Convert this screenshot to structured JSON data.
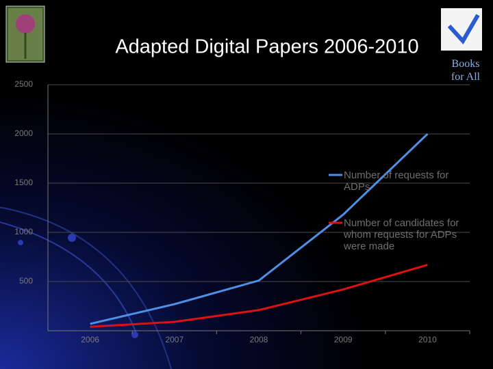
{
  "chart_data": {
    "type": "line",
    "title": "Adapted Digital Papers 2006-2010",
    "categories": [
      "2006",
      "2007",
      "2008",
      "2009",
      "2010"
    ],
    "series": [
      {
        "name": "Number of requests for ADPs",
        "color": "#4f8fe6",
        "values": [
          70,
          270,
          510,
          1180,
          2000
        ]
      },
      {
        "name": "Number of candidates for whom requests for ADPs were made",
        "color": "#dd1111",
        "values": [
          40,
          90,
          210,
          420,
          670
        ]
      }
    ],
    "ylim": [
      0,
      2500
    ],
    "yticks": [
      500,
      1000,
      1500,
      2000,
      2500
    ],
    "grid": true,
    "legend": "right"
  },
  "branding": {
    "logo_text": [
      "Books",
      "for All"
    ]
  }
}
